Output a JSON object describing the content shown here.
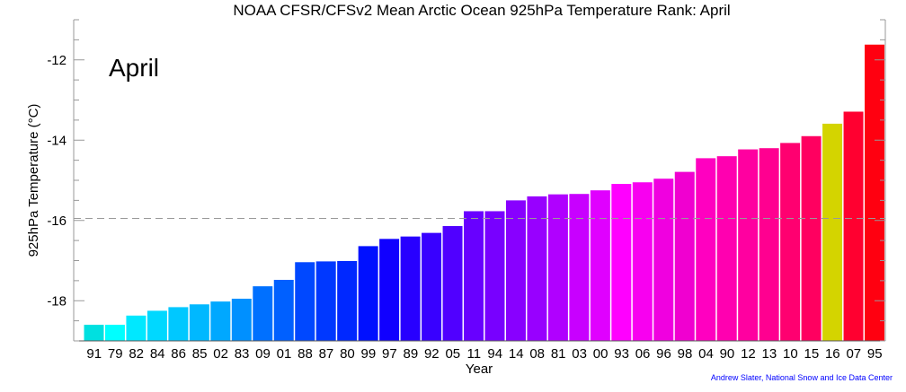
{
  "chart_data": {
    "type": "bar",
    "title": "NOAA CFSR/CFSv2 Mean Arctic Ocean 925hPa Temperature Rank: April",
    "annotation": "April",
    "xlabel": "Year",
    "ylabel": "925hPa Temperature (°C)",
    "ylim": [
      -19,
      -11
    ],
    "yticks": [
      -12,
      -14,
      -16,
      -18
    ],
    "mean_line": -15.95,
    "categories": [
      "91",
      "79",
      "82",
      "84",
      "86",
      "85",
      "02",
      "83",
      "09",
      "01",
      "88",
      "87",
      "80",
      "99",
      "97",
      "89",
      "92",
      "05",
      "11",
      "94",
      "14",
      "08",
      "81",
      "03",
      "00",
      "93",
      "06",
      "96",
      "98",
      "04",
      "90",
      "12",
      "13",
      "10",
      "15",
      "16",
      "07",
      "95"
    ],
    "values": [
      -18.6,
      -18.6,
      -18.37,
      -18.25,
      -18.16,
      -18.09,
      -18.02,
      -17.95,
      -17.64,
      -17.48,
      -17.04,
      -17.02,
      -17.01,
      -16.64,
      -16.46,
      -16.4,
      -16.31,
      -16.14,
      -15.77,
      -15.77,
      -15.5,
      -15.4,
      -15.35,
      -15.34,
      -15.25,
      -15.09,
      -15.05,
      -14.96,
      -14.79,
      -14.45,
      -14.4,
      -14.23,
      -14.2,
      -14.07,
      -13.9,
      -13.59,
      -13.29,
      -11.62
    ],
    "colors": [
      "#00e0e0",
      "#00ffff",
      "#00e8ff",
      "#00d8ff",
      "#00c8ff",
      "#00b8ff",
      "#00a8ff",
      "#0090ff",
      "#0070ff",
      "#0060ff",
      "#0048ff",
      "#0038ff",
      "#0028ff",
      "#0010ff",
      "#1000ff",
      "#2800ff",
      "#3800ff",
      "#5000ff",
      "#6800ff",
      "#7800ff",
      "#8800ff",
      "#9800ff",
      "#b000ff",
      "#c800ff",
      "#e000ff",
      "#ff00ff",
      "#f800f0",
      "#f000e0",
      "#f000d0",
      "#ff00c0",
      "#ff00b0",
      "#ff00a0",
      "#ff0090",
      "#ff0070",
      "#ff0060",
      "#d4d400",
      "#ff0030",
      "#ff0010"
    ],
    "grid": false
  },
  "credit": "Andrew Slater, National Snow and Ice Data Center",
  "credit_color": "#0000ff"
}
